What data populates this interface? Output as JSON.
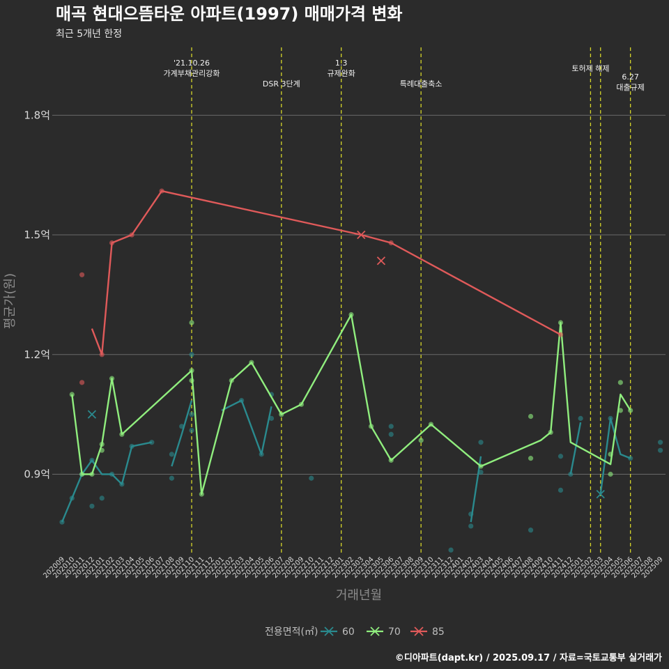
{
  "chart_data": {
    "type": "line",
    "title": "매곡 현대으뜸타운 아파트(1997) 매매가격 변화",
    "subtitle": "최근 5개년 한정",
    "xlabel": "거래년월",
    "ylabel": "평균가(원)",
    "caption": "©디아파트(dapt.kr) / 2025.09.17 / 자료=국토교통부 실거래가",
    "grid": true,
    "ylim": [
      0.7,
      1.97
    ],
    "y_ticks": [
      {
        "value": 0.9,
        "label": "0.9억"
      },
      {
        "value": 1.2,
        "label": "1.2억"
      },
      {
        "value": 1.5,
        "label": "1.5억"
      },
      {
        "value": 1.8,
        "label": "1.8억"
      }
    ],
    "categories": [
      "202009",
      "202010",
      "202011",
      "202012",
      "202101",
      "202102",
      "202103",
      "202104",
      "202105",
      "202106",
      "202107",
      "202108",
      "202109",
      "202110",
      "202111",
      "202112",
      "202201",
      "202202",
      "202203",
      "202204",
      "202205",
      "202206",
      "202207",
      "202208",
      "202209",
      "202210",
      "202211",
      "202212",
      "202301",
      "202302",
      "202303",
      "202304",
      "202305",
      "202306",
      "202307",
      "202308",
      "202309",
      "202310",
      "202311",
      "202312",
      "202401",
      "202402",
      "202403",
      "202404",
      "202405",
      "202406",
      "202407",
      "202408",
      "202409",
      "202410",
      "202411",
      "202412",
      "202501",
      "202502",
      "202503",
      "202504",
      "202505",
      "202506",
      "202507",
      "202508",
      "202509"
    ],
    "legend": {
      "title": "전용면적(㎡)",
      "position": "bottom"
    },
    "series": [
      {
        "name": "60",
        "color": "#2a8a8e",
        "line": [
          [
            "202009",
            0.78
          ],
          [
            "202010",
            0.84
          ],
          [
            "202011",
            0.9
          ],
          [
            "202012",
            0.935
          ],
          [
            "202101",
            0.9
          ],
          [
            "202102",
            0.9
          ],
          [
            "202103",
            0.875
          ],
          [
            "202104",
            0.97
          ],
          [
            "202106",
            0.98
          ],
          null,
          [
            "202108",
            0.92
          ],
          [
            "202109",
            1.0
          ],
          [
            "202110",
            1.085
          ],
          null,
          [
            "202201",
            1.06
          ],
          [
            "202203",
            1.085
          ],
          [
            "202205",
            0.95
          ],
          [
            "202206",
            1.07
          ],
          null,
          [
            "202402",
            0.78
          ],
          [
            "202403",
            0.945
          ],
          null,
          [
            "202412",
            0.9
          ],
          [
            "202501",
            1.03
          ],
          null,
          [
            "202503",
            0.85
          ],
          [
            "202504",
            1.04
          ],
          [
            "202505",
            0.95
          ],
          [
            "202506",
            0.94
          ]
        ],
        "points": [
          [
            "202009",
            0.78
          ],
          [
            "202010",
            0.84
          ],
          [
            "202011",
            0.9
          ],
          [
            "202012",
            0.82
          ],
          [
            "202012",
            0.935
          ],
          [
            "202101",
            0.84
          ],
          [
            "202102",
            0.9
          ],
          [
            "202103",
            0.875
          ],
          [
            "202104",
            0.97
          ],
          [
            "202106",
            0.98
          ],
          [
            "202108",
            0.89
          ],
          [
            "202108",
            0.95
          ],
          [
            "202109",
            1.02
          ],
          [
            "202110",
            1.01
          ],
          [
            "202110",
            1.2
          ],
          [
            "202110",
            1.05
          ],
          [
            "202203",
            1.085
          ],
          [
            "202205",
            0.95
          ],
          [
            "202206",
            1.04
          ],
          [
            "202206",
            1.1
          ],
          [
            "202210",
            0.89
          ],
          [
            "202306",
            1.02
          ],
          [
            "202306",
            1.0
          ],
          [
            "202312",
            0.71
          ],
          [
            "202402",
            0.8
          ],
          [
            "202402",
            0.77
          ],
          [
            "202403",
            0.98
          ],
          [
            "202403",
            0.905
          ],
          [
            "202408",
            0.76
          ],
          [
            "202411",
            0.86
          ],
          [
            "202411",
            0.945
          ],
          [
            "202412",
            0.9
          ],
          [
            "202501",
            1.04
          ],
          [
            "202504",
            1.04
          ],
          [
            "202506",
            0.94
          ],
          [
            "202509",
            0.98
          ],
          [
            "202509",
            0.96
          ]
        ],
        "cross_points": [
          [
            "202012",
            1.05
          ],
          [
            "202503",
            0.85
          ]
        ]
      },
      {
        "name": "70",
        "color": "#90ee7e",
        "line": [
          [
            "202010",
            1.1
          ],
          [
            "202011",
            0.9
          ],
          [
            "202012",
            0.9
          ],
          [
            "202101",
            0.975
          ],
          [
            "202102",
            1.14
          ],
          [
            "202103",
            1.0
          ],
          [
            "202110",
            1.16
          ],
          [
            "202111",
            0.85
          ],
          [
            "202202",
            1.135
          ],
          [
            "202204",
            1.18
          ],
          [
            "202207",
            1.05
          ],
          [
            "202209",
            1.075
          ],
          [
            "202302",
            1.3
          ],
          [
            "202304",
            1.02
          ],
          [
            "202306",
            0.935
          ],
          [
            "202310",
            1.025
          ],
          [
            "202403",
            0.92
          ],
          [
            "202409",
            0.985
          ],
          [
            "202410",
            1.005
          ],
          [
            "202411",
            1.28
          ],
          [
            "202412",
            0.98
          ],
          [
            "202504",
            0.925
          ],
          [
            "202505",
            1.1
          ],
          [
            "202506",
            1.06
          ]
        ],
        "points": [
          [
            "202010",
            1.1
          ],
          [
            "202011",
            0.9
          ],
          [
            "202012",
            0.9
          ],
          [
            "202101",
            0.975
          ],
          [
            "202101",
            0.96
          ],
          [
            "202102",
            1.14
          ],
          [
            "202103",
            1.0
          ],
          [
            "202110",
            1.28
          ],
          [
            "202110",
            1.16
          ],
          [
            "202110",
            1.135
          ],
          [
            "202111",
            0.85
          ],
          [
            "202202",
            1.135
          ],
          [
            "202204",
            1.18
          ],
          [
            "202207",
            1.05
          ],
          [
            "202209",
            1.075
          ],
          [
            "202302",
            1.3
          ],
          [
            "202304",
            1.02
          ],
          [
            "202306",
            0.935
          ],
          [
            "202309",
            0.985
          ],
          [
            "202310",
            1.025
          ],
          [
            "202403",
            0.92
          ],
          [
            "202408",
            1.045
          ],
          [
            "202408",
            0.94
          ],
          [
            "202410",
            1.005
          ],
          [
            "202411",
            1.28
          ],
          [
            "202504",
            0.95
          ],
          [
            "202504",
            0.9
          ],
          [
            "202505",
            1.13
          ],
          [
            "202505",
            1.06
          ],
          [
            "202506",
            1.06
          ]
        ],
        "cross_points": []
      },
      {
        "name": "85",
        "color": "#e05a5a",
        "line": [
          [
            "202012",
            1.265
          ],
          [
            "202101",
            1.2
          ],
          [
            "202102",
            1.48
          ],
          [
            "202104",
            1.5
          ],
          [
            "202107",
            1.61
          ],
          [
            "202303",
            1.5
          ],
          [
            "202306",
            1.48
          ],
          [
            "202411",
            1.25
          ]
        ],
        "points": [
          [
            "202011",
            1.4
          ],
          [
            "202011",
            1.13
          ],
          [
            "202101",
            1.2
          ],
          [
            "202102",
            1.48
          ],
          [
            "202104",
            1.5
          ],
          [
            "202107",
            1.61
          ],
          [
            "202306",
            1.48
          ],
          [
            "202411",
            1.25
          ]
        ],
        "cross_points": [
          [
            "202303",
            1.5
          ],
          [
            "202305",
            1.435
          ]
        ]
      }
    ],
    "events": [
      {
        "x": "202110",
        "lines": [
          "'21.10.26",
          "가계부채관리강화"
        ]
      },
      {
        "x": "202207",
        "lines": [
          "DSR 3단계"
        ]
      },
      {
        "x": "202301",
        "lines": [
          "1.3",
          "규제완화"
        ]
      },
      {
        "x": "202309",
        "lines": [
          "특례대출축소"
        ]
      },
      {
        "x": "202502",
        "lines": [
          "토허제 해제"
        ]
      },
      {
        "x": "202503",
        "lines": []
      },
      {
        "x": "202506",
        "lines": [
          "6.27",
          "대출규제"
        ]
      }
    ]
  }
}
